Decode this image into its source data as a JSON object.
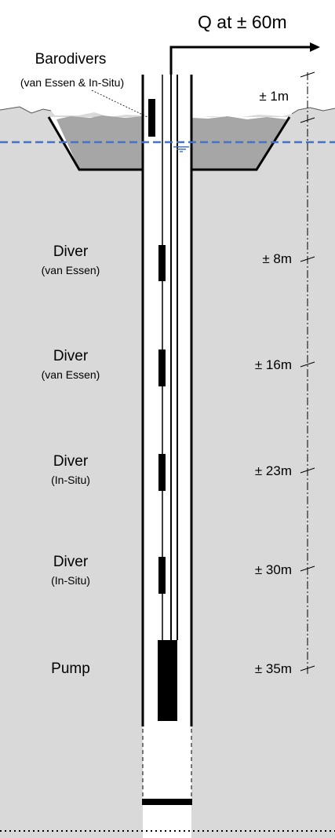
{
  "title": "Q at ± 60m",
  "barodivers": {
    "label": "Barodivers",
    "sublabel": "(van Essen & In-Situ)"
  },
  "instruments": [
    {
      "label": "Diver",
      "sublabel": "(van Essen)",
      "depth": "± 8m"
    },
    {
      "label": "Diver",
      "sublabel": "(van Essen)",
      "depth": "± 16m"
    },
    {
      "label": "Diver",
      "sublabel": "(In-Situ)",
      "depth": "± 23m"
    },
    {
      "label": "Diver",
      "sublabel": "(In-Situ)",
      "depth": "± 30m"
    },
    {
      "label": "Pump",
      "sublabel": "",
      "depth": "± 35m"
    }
  ],
  "surface_depth": "± 1m",
  "colors": {
    "ground": "#d9d9d9",
    "pond_water": "#a6a6a6",
    "water_table": "#4472c4",
    "sensor": "#000000"
  }
}
